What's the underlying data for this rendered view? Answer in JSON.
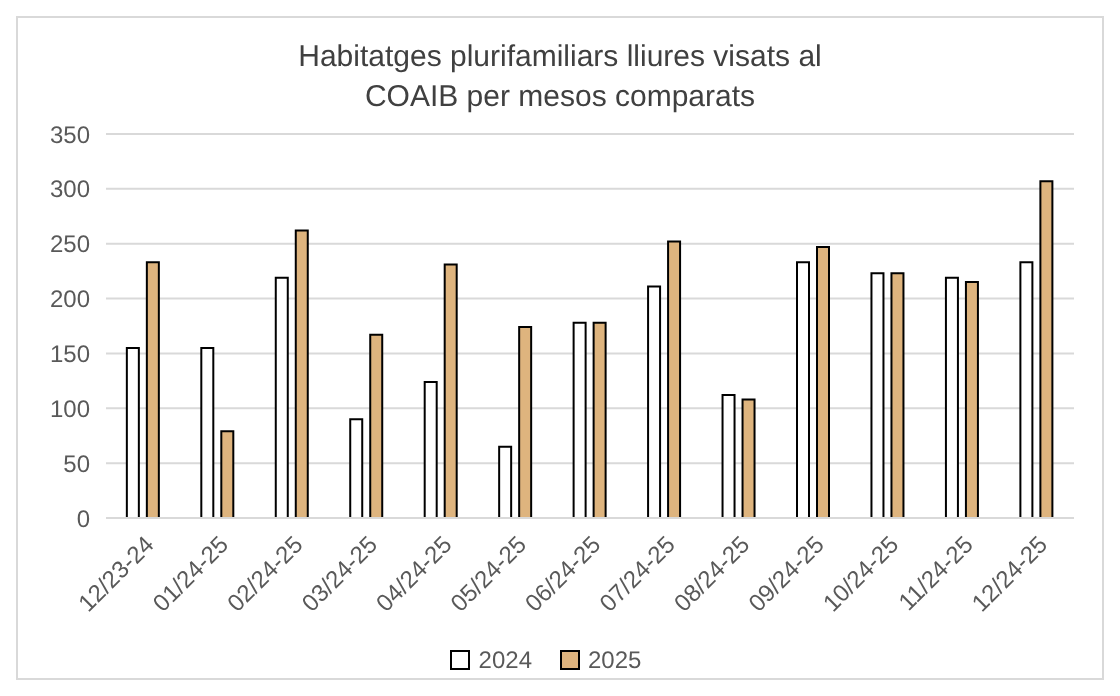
{
  "chart_data": {
    "type": "bar",
    "title": "Habitatges plurifamiliars lliures visats al COAIB per mesos comparats",
    "categories": [
      "12/23-24",
      "01/24-25",
      "02/24-25",
      "03/24-25",
      "04/24-25",
      "05/24-25",
      "06/24-25",
      "07/24-25",
      "08/24-25",
      "09/24-25",
      "10/24-25",
      "11/24-25",
      "12/24-25"
    ],
    "series": [
      {
        "name": "2024",
        "color": "#ffffff",
        "values": [
          155,
          155,
          219,
          90,
          124,
          65,
          178,
          211,
          112,
          233,
          223,
          219,
          233
        ]
      },
      {
        "name": "2025",
        "color": "#deb47e",
        "values": [
          233,
          79,
          262,
          167,
          231,
          174,
          178,
          252,
          108,
          247,
          223,
          215,
          307
        ]
      }
    ],
    "ylim": [
      0,
      350
    ],
    "yticks": [
      0,
      50,
      100,
      150,
      200,
      250,
      300,
      350
    ],
    "grid": "y",
    "legend": "bottom"
  }
}
